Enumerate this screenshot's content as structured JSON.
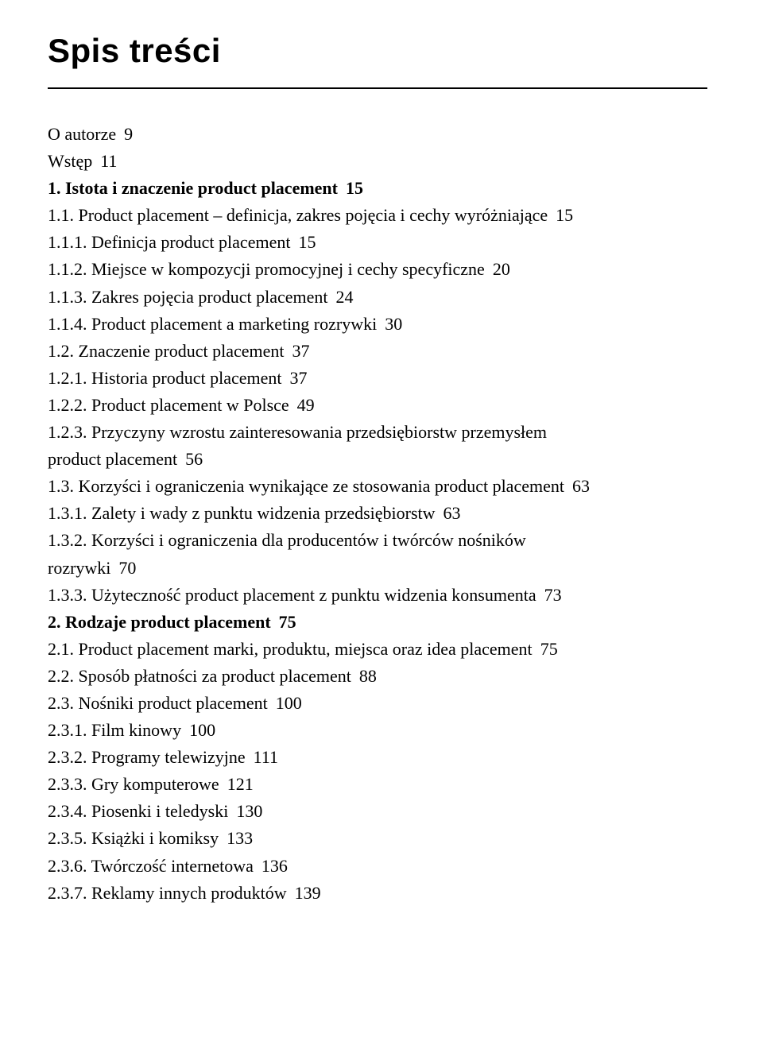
{
  "title": "Spis treści",
  "entries": [
    {
      "cls": "lvl1",
      "text": "O autorze",
      "page": "9"
    },
    {
      "cls": "lvl1",
      "text": "Wstęp",
      "page": "11"
    },
    {
      "cls": "lvl1 bold",
      "text": "1. Istota i znaczenie product placement",
      "page": "15"
    },
    {
      "cls": "lvl2",
      "text": "1.1.  Product placement – definicja, zakres pojęcia i cechy wyróżniające",
      "page": "15"
    },
    {
      "cls": "lvl3",
      "text": "1.1.1. Definicja product placement",
      "page": "15"
    },
    {
      "cls": "lvl3",
      "text": "1.1.2.  Miejsce w kompozycji promocyjnej i cechy specyficzne",
      "page": "20"
    },
    {
      "cls": "lvl3",
      "text": "1.1.3. Zakres pojęcia product placement",
      "page": "24"
    },
    {
      "cls": "lvl3",
      "text": "1.1.4.  Product placement a marketing rozrywki",
      "page": "30"
    },
    {
      "cls": "lvl2",
      "text": "1.2. Znaczenie product placement",
      "page": "37"
    },
    {
      "cls": "lvl3",
      "text": "1.2.1. Historia product placement",
      "page": "37"
    },
    {
      "cls": "lvl3",
      "text": "1.2.2.  Product placement w Polsce",
      "page": "49"
    },
    {
      "cls": "lvl3",
      "text": "1.2.3.  Przyczyny wzrostu zainteresowania przedsiębiorstw przemysłem",
      "page": ""
    },
    {
      "cls": "cont",
      "text": "product placement",
      "page": "56"
    },
    {
      "cls": "lvl2",
      "text": "1.3.  Korzyści i ograniczenia wynikające ze stosowania product placement",
      "page": "63"
    },
    {
      "cls": "lvl3",
      "text": "1.3.1.  Zalety i wady z punktu widzenia przedsiębiorstw",
      "page": "63"
    },
    {
      "cls": "lvl3",
      "text": "1.3.2.  Korzyści i ograniczenia dla producentów i twórców nośników",
      "page": ""
    },
    {
      "cls": "cont",
      "text": "rozrywki",
      "page": "70"
    },
    {
      "cls": "lvl3",
      "text": "1.3.3.  Użyteczność product placement z punktu widzenia konsumenta",
      "page": "73"
    },
    {
      "cls": "lvl1 bold gap-top",
      "text": "2. Rodzaje product placement",
      "page": "75"
    },
    {
      "cls": "lvl2",
      "text": "2.1. Product placement marki, produktu, miejsca oraz idea placement",
      "page": "75"
    },
    {
      "cls": "lvl2",
      "text": "2.2. Sposób płatności za product placement",
      "page": "88"
    },
    {
      "cls": "lvl2",
      "text": "2.3. Nośniki product placement",
      "page": "100"
    },
    {
      "cls": "lvl3",
      "text": "2.3.1. Film kinowy",
      "page": "100"
    },
    {
      "cls": "lvl3",
      "text": "2.3.2. Programy telewizyjne",
      "page": "111"
    },
    {
      "cls": "lvl3",
      "text": "2.3.3. Gry komputerowe",
      "page": "121"
    },
    {
      "cls": "lvl3",
      "text": "2.3.4. Piosenki i teledyski",
      "page": "130"
    },
    {
      "cls": "lvl3",
      "text": "2.3.5. Książki i komiksy",
      "page": "133"
    },
    {
      "cls": "lvl3",
      "text": "2.3.6. Twórczość internetowa",
      "page": "136"
    },
    {
      "cls": "lvl3",
      "text": "2.3.7. Reklamy innych produktów",
      "page": "139"
    }
  ]
}
